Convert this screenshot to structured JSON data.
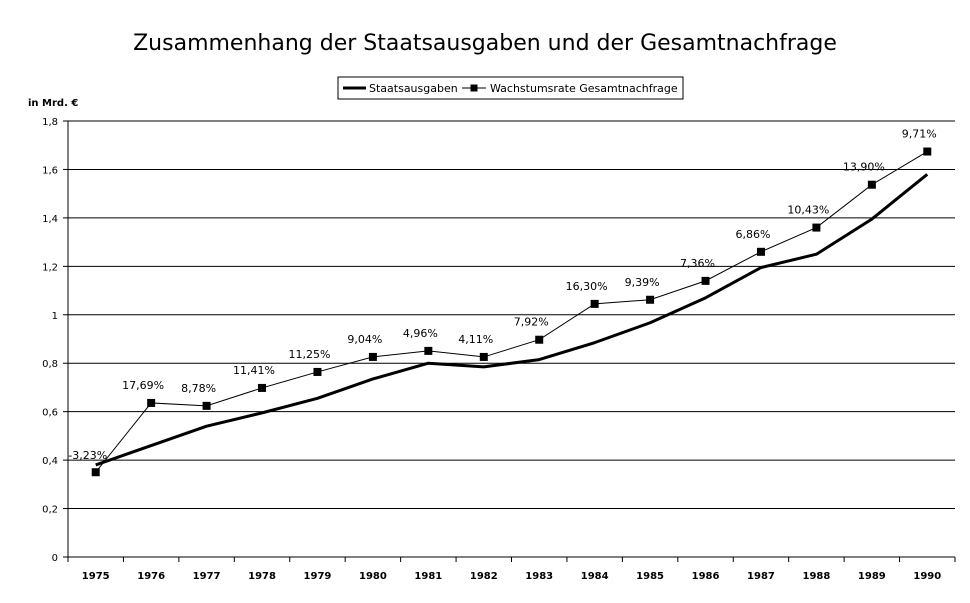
{
  "chart_data": {
    "type": "line",
    "title": "Zusammenhang der Staatsausgaben und der Gesamtnachfrage",
    "ylabel": "in Mrd. €",
    "xlabel": "",
    "ylim": [
      0,
      1.8
    ],
    "yticks": [
      0,
      0.2,
      0.4,
      0.6,
      0.8,
      1,
      1.2,
      1.4,
      1.6,
      1.8
    ],
    "ytick_labels": [
      "0",
      "0,2",
      "0,4",
      "0,6",
      "0,8",
      "1",
      "1,2",
      "1,4",
      "1,6",
      "1,8"
    ],
    "grid": true,
    "legend_position": "top-center",
    "categories": [
      "1975",
      "1976",
      "1977",
      "1978",
      "1979",
      "1980",
      "1981",
      "1982",
      "1983",
      "1984",
      "1985",
      "1986",
      "1987",
      "1988",
      "1989",
      "1990"
    ],
    "series": [
      {
        "name": "Staatsausgaben",
        "style": "thick-line",
        "values": [
          0.38,
          0.46,
          0.54,
          0.595,
          0.655,
          0.735,
          0.8,
          0.785,
          0.815,
          0.885,
          0.967,
          1.07,
          1.195,
          1.25,
          1.395,
          1.58
        ]
      },
      {
        "name": "Wachstumsrate Gesamtnachfrage",
        "style": "thin-line-square-markers",
        "values": [
          0.35,
          0.636,
          0.624,
          0.698,
          0.764,
          0.826,
          0.851,
          0.826,
          0.897,
          1.045,
          1.062,
          1.14,
          1.26,
          1.36,
          1.537,
          1.674
        ],
        "data_labels": [
          "-3,23%",
          "17,69%",
          "8,78%",
          "11,41%",
          "11,25%",
          "9,04%",
          "4,96%",
          "4,11%",
          "7,92%",
          "16,30%",
          "9,39%",
          "7,36%",
          "6,86%",
          "10,43%",
          "13,90%",
          "9,71%"
        ]
      }
    ]
  }
}
